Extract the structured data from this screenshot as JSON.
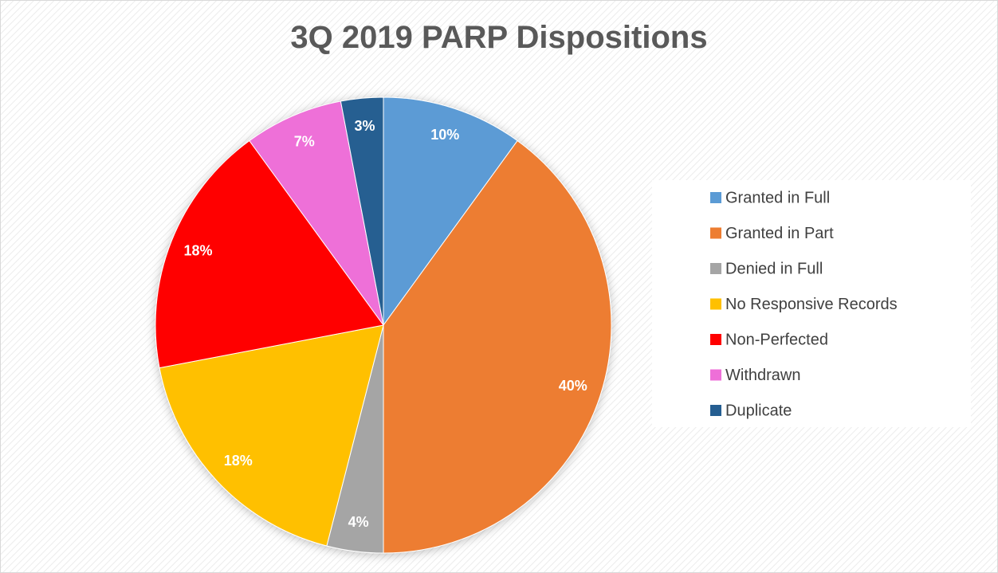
{
  "chart_data": {
    "type": "pie",
    "title": "3Q 2019 PARP Dispositions",
    "categories": [
      "Granted in Full",
      "Granted in Part",
      "Denied in Full",
      "No Responsive Records",
      "Non-Perfected",
      "Withdrawn",
      "Duplicate"
    ],
    "values": [
      10,
      40,
      4,
      18,
      18,
      7,
      3
    ],
    "value_labels": [
      "10%",
      "40%",
      "4%",
      "18%",
      "18%",
      "7%",
      "3%"
    ],
    "colors": [
      "#5b9bd5",
      "#ed7d31",
      "#a5a5a5",
      "#ffc000",
      "#ff0000",
      "#ee6fd8",
      "#255e91"
    ],
    "legend": "right"
  }
}
